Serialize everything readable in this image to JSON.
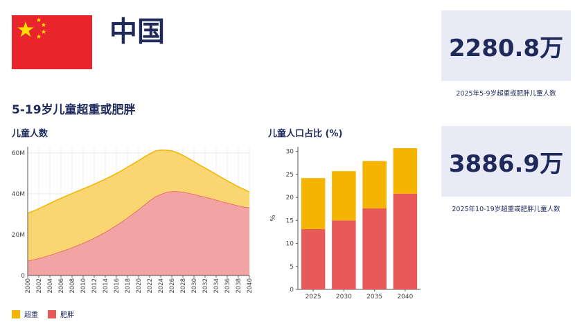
{
  "header": {
    "country_name": "中国",
    "flag": {
      "name": "china-flag",
      "colors": {
        "field": "#e8242c",
        "stars": "#ffde00"
      }
    }
  },
  "section_title": "5-19岁儿童超重或肥胖",
  "stats": [
    {
      "value": "2280.8万",
      "caption": "2025年5-9岁超重或肥胖儿童人数"
    },
    {
      "value": "3886.9万",
      "caption": "2025年10-19岁超重或肥胖儿童人数"
    }
  ],
  "legend": [
    {
      "label": "超重",
      "color": "#f5b400"
    },
    {
      "label": "肥胖",
      "color": "#e85a5a"
    }
  ],
  "chart_data": [
    {
      "type": "area",
      "title": "儿童人数",
      "stacked": true,
      "x": [
        2000,
        2001,
        2002,
        2003,
        2004,
        2005,
        2006,
        2007,
        2008,
        2009,
        2010,
        2011,
        2012,
        2013,
        2014,
        2015,
        2016,
        2017,
        2018,
        2019,
        2020,
        2021,
        2022,
        2023,
        2024,
        2025,
        2026,
        2027,
        2028,
        2029,
        2030,
        2031,
        2032,
        2033,
        2034,
        2035,
        2036,
        2037,
        2038,
        2039,
        2040
      ],
      "xtick_labels": [
        "2000",
        "2002",
        "2004",
        "2006",
        "2008",
        "2010",
        "2012",
        "2014",
        "2016",
        "2018",
        "2020",
        "2022",
        "2024",
        "2026",
        "2028",
        "2030",
        "2032",
        "2034",
        "2036",
        "2038",
        "2040"
      ],
      "yticks": [
        0,
        20,
        40,
        60
      ],
      "ytick_labels": [
        "0",
        "20M",
        "40M",
        "60M"
      ],
      "ylim": [
        0,
        63
      ],
      "grid": true,
      "series": [
        {
          "name": "肥胖",
          "color": "#e85a5a",
          "values": [
            7.2,
            7.8,
            8.5,
            9.2,
            10.0,
            10.9,
            11.8,
            12.7,
            13.7,
            14.8,
            15.9,
            17.1,
            18.4,
            19.8,
            21.3,
            22.9,
            24.6,
            26.4,
            28.3,
            30.3,
            32.3,
            34.5,
            36.7,
            38.6,
            39.8,
            40.8,
            41.2,
            41.2,
            40.9,
            40.4,
            39.8,
            39.1,
            38.5,
            37.8,
            37.0,
            36.3,
            35.6,
            34.9,
            34.2,
            33.6,
            33.3
          ]
        },
        {
          "name": "超重",
          "color": "#f5b400",
          "values": [
            23.3,
            23.7,
            24.2,
            24.8,
            25.3,
            25.7,
            26.0,
            26.3,
            26.4,
            26.5,
            26.5,
            26.4,
            26.3,
            26.1,
            25.9,
            25.6,
            25.3,
            25.0,
            24.7,
            24.3,
            23.9,
            23.4,
            22.8,
            22.3,
            21.6,
            20.5,
            19.8,
            18.9,
            17.9,
            16.9,
            15.9,
            15.0,
            14.1,
            13.3,
            12.5,
            11.6,
            10.8,
            10.0,
            9.2,
            8.6,
            7.6
          ]
        }
      ]
    },
    {
      "type": "bar",
      "title": "儿童人口占比 (%)",
      "stacked": true,
      "categories": [
        "2025",
        "2030",
        "2035",
        "2040"
      ],
      "ylabel": "%",
      "yticks": [
        0,
        5,
        10,
        15,
        20,
        25,
        30
      ],
      "ylim": [
        0,
        31
      ],
      "grid": false,
      "series": [
        {
          "name": "肥胖",
          "color": "#e85a5a",
          "values": [
            13.1,
            15.0,
            17.6,
            20.8
          ]
        },
        {
          "name": "超重",
          "color": "#f5b400",
          "values": [
            11.1,
            10.7,
            10.3,
            9.9
          ]
        }
      ]
    }
  ]
}
